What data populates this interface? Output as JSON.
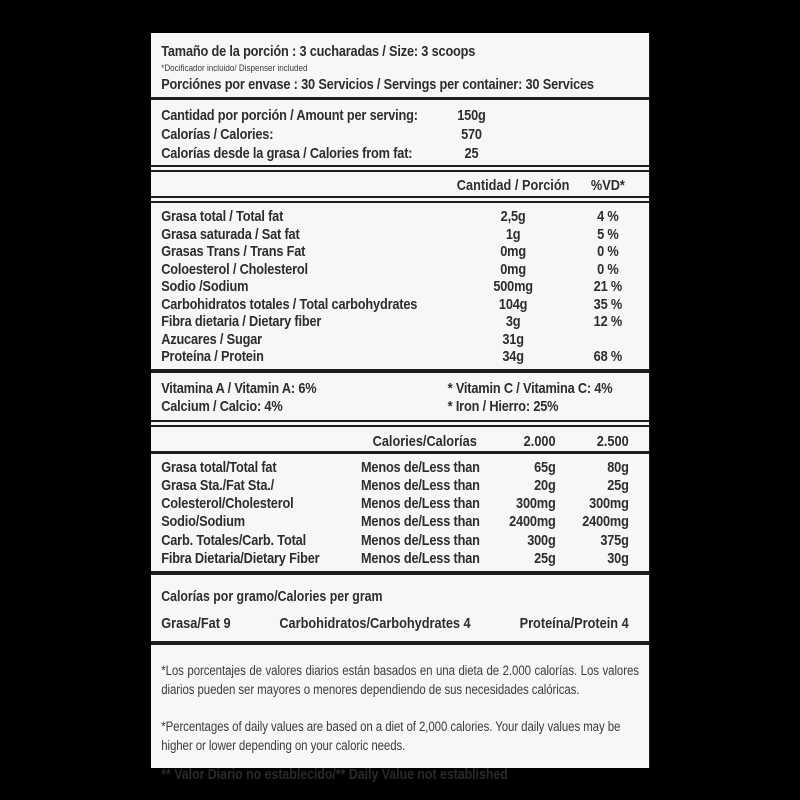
{
  "colors": {
    "background": "#000000",
    "panel": "#f7f7f7",
    "text": "#2d2d2d",
    "rule": "#1e1e1e"
  },
  "serving": {
    "size_line": "Tamaño de la porción : 3 cucharadas / Size: 3 scoops",
    "dispenser_note": "*Docificador incluido/ Dispenser included",
    "servings_line": "Porciónes por envase : 30 Servicios / Servings per container: 30 Services"
  },
  "per_serving": {
    "rows": [
      {
        "label": "Cantidad por porción / Amount per serving:",
        "value": "150g"
      },
      {
        "label": "Calorías / Calories:",
        "value": "570"
      },
      {
        "label": "Calorías desde la grasa / Calories from fat:",
        "value": "25"
      }
    ]
  },
  "nutrients": {
    "header": {
      "amount": "Cantidad / Porción",
      "dv": "%VD*"
    },
    "rows": [
      {
        "label": "Grasa total / Total fat",
        "amount": "2,5g",
        "dv": "4 %"
      },
      {
        "label": "Grasa saturada / Sat fat",
        "amount": "1g",
        "dv": "5 %"
      },
      {
        "label": "Grasas Trans / Trans Fat",
        "amount": "0mg",
        "dv": "0 %"
      },
      {
        "label": "Coloesterol / Cholesterol",
        "amount": "0mg",
        "dv": "0 %"
      },
      {
        "label": "Sodio /Sodium",
        "amount": "500mg",
        "dv": "21 %"
      },
      {
        "label": "Carbohidratos totales / Total carbohydrates",
        "amount": "104g",
        "dv": "35 %"
      },
      {
        "label": "Fibra dietaria / Dietary fiber",
        "amount": "3g",
        "dv": "12 %"
      },
      {
        "label": "Azucares / Sugar",
        "amount": "31g",
        "dv": ""
      },
      {
        "label": "Proteína / Protein",
        "amount": "34g",
        "dv": "68 %"
      }
    ]
  },
  "vitamins": {
    "rows": [
      {
        "left": "Vitamina A / Vitamin A: 6%",
        "right": "* Vitamin C / Vitamina C: 4%"
      },
      {
        "left": "Calcium / Calcio: 4%",
        "right": "* Iron / Hierro: 25%"
      }
    ]
  },
  "reference": {
    "header": {
      "calories": "Calories/Calorías",
      "c2000": "2.000",
      "c2500": "2.500"
    },
    "rows": [
      {
        "label": "Grasa total/Total fat",
        "qualifier": "Menos de/Less than",
        "c2000": "65g",
        "c2500": "80g"
      },
      {
        "label": "Grasa Sta./Fat Sta./",
        "qualifier": "Menos de/Less than",
        "c2000": "20g",
        "c2500": "25g"
      },
      {
        "label": "Colesterol/Cholesterol",
        "qualifier": "Menos de/Less than",
        "c2000": "300mg",
        "c2500": "300mg"
      },
      {
        "label": "Sodio/Sodium",
        "qualifier": "Menos de/Less than",
        "c2000": "2400mg",
        "c2500": "2400mg"
      },
      {
        "label": "Carb. Totales/Carb. Total",
        "qualifier": "Menos de/Less than",
        "c2000": "300g",
        "c2500": "375g"
      },
      {
        "label": "Fibra Dietaria/Dietary Fiber",
        "qualifier": "Menos de/Less than",
        "c2000": "25g",
        "c2500": "30g"
      }
    ]
  },
  "per_gram": {
    "title": "Calorías por gramo/Calories per gram",
    "fat": "Grasa/Fat 9",
    "carbs": "Carbohidratos/Carbohydrates 4",
    "protein": "Proteína/Protein 4"
  },
  "footnotes": {
    "spanish": "*Los porcentajes de valores diarios están basados en una dieta de 2.000 calorías. Los valores diarios pueden ser mayores o menores dependiendo de sus necesidades calóricas.",
    "english": "*Percentages of daily values are based on a diet of 2,000 calories. Your daily values may be higher or lower depending on your caloric needs.",
    "daily_value_note": "** Valor Diario no establecido/** Daily Value not established"
  }
}
